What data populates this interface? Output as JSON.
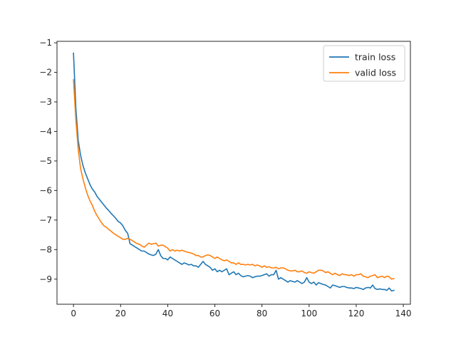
{
  "chart_data": {
    "type": "line",
    "title": "",
    "xlabel": "",
    "ylabel": "",
    "xlim": [
      -7,
      143
    ],
    "ylim": [
      -9.85,
      -0.95
    ],
    "xticks": [
      0,
      20,
      40,
      60,
      80,
      100,
      120,
      140
    ],
    "yticks": [
      -9,
      -8,
      -7,
      -6,
      -5,
      -4,
      -3,
      -2,
      -1
    ],
    "grid": false,
    "legend_position": "top-right",
    "series": [
      {
        "name": "train loss",
        "color": "#1f77b4",
        "x": [
          0,
          1,
          2,
          3,
          4,
          5,
          6,
          7,
          8,
          9,
          10,
          11,
          12,
          13,
          14,
          15,
          16,
          17,
          18,
          19,
          20,
          21,
          22,
          23,
          24,
          25,
          26,
          27,
          28,
          29,
          30,
          31,
          32,
          33,
          34,
          35,
          36,
          37,
          38,
          39,
          40,
          41,
          42,
          43,
          44,
          45,
          46,
          47,
          48,
          49,
          50,
          51,
          52,
          53,
          54,
          55,
          56,
          57,
          58,
          59,
          60,
          61,
          62,
          63,
          64,
          65,
          66,
          67,
          68,
          69,
          70,
          71,
          72,
          73,
          74,
          75,
          76,
          77,
          78,
          79,
          80,
          81,
          82,
          83,
          84,
          85,
          86,
          87,
          88,
          89,
          90,
          91,
          92,
          93,
          94,
          95,
          96,
          97,
          98,
          99,
          100,
          101,
          102,
          103,
          104,
          105,
          106,
          107,
          108,
          109,
          110,
          111,
          112,
          113,
          114,
          115,
          116,
          117,
          118,
          119,
          120,
          121,
          122,
          123,
          124,
          125,
          126,
          127,
          128,
          129,
          130,
          131,
          132,
          133,
          134,
          135,
          136
        ],
        "y": [
          -1.35,
          -3.2,
          -4.3,
          -4.8,
          -5.15,
          -5.4,
          -5.6,
          -5.8,
          -5.95,
          -6.05,
          -6.2,
          -6.3,
          -6.4,
          -6.5,
          -6.6,
          -6.68,
          -6.78,
          -6.86,
          -6.95,
          -7.05,
          -7.1,
          -7.2,
          -7.35,
          -7.45,
          -7.8,
          -7.85,
          -7.9,
          -7.95,
          -8.0,
          -8.05,
          -8.05,
          -8.1,
          -8.15,
          -8.18,
          -8.2,
          -8.15,
          -8.0,
          -8.2,
          -8.3,
          -8.3,
          -8.35,
          -8.25,
          -8.3,
          -8.35,
          -8.4,
          -8.45,
          -8.5,
          -8.45,
          -8.48,
          -8.52,
          -8.5,
          -8.55,
          -8.55,
          -8.6,
          -8.5,
          -8.4,
          -8.5,
          -8.55,
          -8.6,
          -8.7,
          -8.65,
          -8.75,
          -8.7,
          -8.75,
          -8.7,
          -8.65,
          -8.85,
          -8.8,
          -8.75,
          -8.85,
          -8.8,
          -8.88,
          -8.92,
          -8.9,
          -8.88,
          -8.9,
          -8.95,
          -8.92,
          -8.9,
          -8.9,
          -8.88,
          -8.85,
          -8.82,
          -8.9,
          -8.85,
          -8.85,
          -8.7,
          -9.0,
          -8.95,
          -9.0,
          -9.05,
          -9.1,
          -9.05,
          -9.08,
          -9.1,
          -9.05,
          -9.1,
          -9.15,
          -9.1,
          -8.95,
          -9.1,
          -9.15,
          -9.1,
          -9.2,
          -9.12,
          -9.15,
          -9.18,
          -9.2,
          -9.25,
          -9.3,
          -9.2,
          -9.22,
          -9.25,
          -9.28,
          -9.25,
          -9.25,
          -9.28,
          -9.3,
          -9.3,
          -9.32,
          -9.28,
          -9.3,
          -9.32,
          -9.35,
          -9.3,
          -9.28,
          -9.3,
          -9.2,
          -9.32,
          -9.35,
          -9.33,
          -9.35,
          -9.35,
          -9.38,
          -9.3,
          -9.4,
          -9.38
        ],
        "_note": "values estimated from the plotted curve"
      },
      {
        "name": "valid loss",
        "color": "#ff7f0e",
        "x": [
          0,
          1,
          2,
          3,
          4,
          5,
          6,
          7,
          8,
          9,
          10,
          11,
          12,
          13,
          14,
          15,
          16,
          17,
          18,
          19,
          20,
          21,
          22,
          23,
          24,
          25,
          26,
          27,
          28,
          29,
          30,
          31,
          32,
          33,
          34,
          35,
          36,
          37,
          38,
          39,
          40,
          41,
          42,
          43,
          44,
          45,
          46,
          47,
          48,
          49,
          50,
          51,
          52,
          53,
          54,
          55,
          56,
          57,
          58,
          59,
          60,
          61,
          62,
          63,
          64,
          65,
          66,
          67,
          68,
          69,
          70,
          71,
          72,
          73,
          74,
          75,
          76,
          77,
          78,
          79,
          80,
          81,
          82,
          83,
          84,
          85,
          86,
          87,
          88,
          89,
          90,
          91,
          92,
          93,
          94,
          95,
          96,
          97,
          98,
          99,
          100,
          101,
          102,
          103,
          104,
          105,
          106,
          107,
          108,
          109,
          110,
          111,
          112,
          113,
          114,
          115,
          116,
          117,
          118,
          119,
          120,
          121,
          122,
          123,
          124,
          125,
          126,
          127,
          128,
          129,
          130,
          131,
          132,
          133,
          134,
          135,
          136
        ],
        "y": [
          -2.25,
          -3.6,
          -4.6,
          -5.25,
          -5.6,
          -5.9,
          -6.15,
          -6.35,
          -6.5,
          -6.7,
          -6.85,
          -6.98,
          -7.1,
          -7.2,
          -7.25,
          -7.32,
          -7.38,
          -7.45,
          -7.5,
          -7.55,
          -7.6,
          -7.65,
          -7.65,
          -7.62,
          -7.65,
          -7.7,
          -7.75,
          -7.8,
          -7.82,
          -7.88,
          -7.92,
          -7.85,
          -7.78,
          -7.82,
          -7.8,
          -7.78,
          -7.88,
          -7.85,
          -7.85,
          -7.9,
          -7.95,
          -8.05,
          -8.0,
          -8.05,
          -8.02,
          -8.05,
          -8.02,
          -8.05,
          -8.08,
          -8.1,
          -8.12,
          -8.15,
          -8.2,
          -8.2,
          -8.25,
          -8.25,
          -8.2,
          -8.18,
          -8.2,
          -8.25,
          -8.3,
          -8.25,
          -8.3,
          -8.35,
          -8.38,
          -8.35,
          -8.4,
          -8.45,
          -8.45,
          -8.5,
          -8.45,
          -8.5,
          -8.5,
          -8.52,
          -8.5,
          -8.52,
          -8.5,
          -8.55,
          -8.52,
          -8.55,
          -8.6,
          -8.55,
          -8.6,
          -8.58,
          -8.62,
          -8.62,
          -8.6,
          -8.65,
          -8.62,
          -8.62,
          -8.65,
          -8.7,
          -8.72,
          -8.72,
          -8.7,
          -8.75,
          -8.75,
          -8.72,
          -8.78,
          -8.8,
          -8.75,
          -8.78,
          -8.8,
          -8.75,
          -8.7,
          -8.7,
          -8.72,
          -8.78,
          -8.75,
          -8.8,
          -8.85,
          -8.8,
          -8.85,
          -8.88,
          -8.82,
          -8.85,
          -8.85,
          -8.88,
          -8.85,
          -8.9,
          -8.85,
          -8.85,
          -8.82,
          -8.9,
          -8.92,
          -8.95,
          -8.9,
          -8.88,
          -8.85,
          -8.95,
          -8.92,
          -8.9,
          -8.95,
          -8.9,
          -8.92,
          -9.0,
          -8.98
        ]
      }
    ]
  },
  "colors": {
    "axis": "#262626",
    "background": "#ffffff",
    "train": "#1f77b4",
    "valid": "#ff7f0e"
  }
}
